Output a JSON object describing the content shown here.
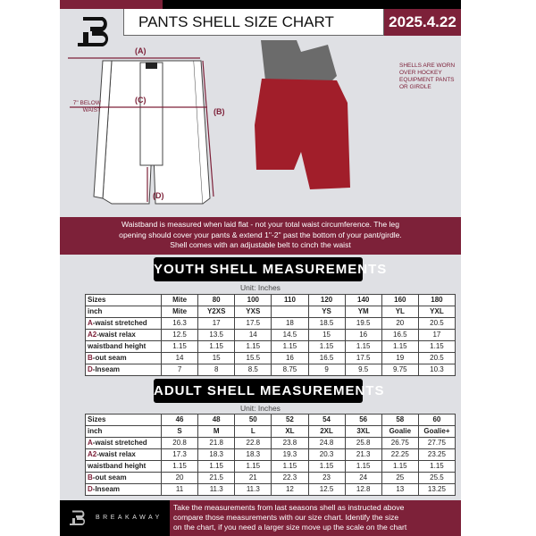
{
  "header": {
    "title": "PANTS SHELL SIZE CHART",
    "date": "2025.4.22"
  },
  "diagram": {
    "labels": {
      "a": "(A)",
      "b": "(B)",
      "c": "(C)",
      "d": "(D)"
    },
    "below_waist_note": [
      "7\" BELOW",
      "WAIST"
    ],
    "shell_note": [
      "SHELLS ARE WORN",
      "OVER HOCKEY",
      "EQUIPMENT PANTS",
      "OR GIRDLE"
    ]
  },
  "info": [
    "Waistband is measured when laid flat - not your total waist circumference. The leg",
    "opening should cover your pants & extend 1\"-2\" past the bottom of your pant/girdle.",
    "Shell comes with an adjustable belt to cinch the waist"
  ],
  "youth": {
    "title": "YOUTH SHELL MEASUREMENTS",
    "unit": "Unit: Inches",
    "rows": [
      {
        "prefix": "",
        "label": "Sizes",
        "values": [
          "Mite",
          "80",
          "100",
          "110",
          "120",
          "140",
          "160",
          "180"
        ]
      },
      {
        "prefix": "",
        "label": "inch",
        "values": [
          "Mite",
          "Y2XS",
          "YXS",
          "",
          "YS",
          "YM",
          "YL",
          "YXL"
        ]
      },
      {
        "prefix": "A",
        "label": "-waist stretched",
        "values": [
          "16.3",
          "17",
          "17.5",
          "18",
          "18.5",
          "19.5",
          "20",
          "20.5"
        ]
      },
      {
        "prefix": "A2",
        "label": "-waist relax",
        "values": [
          "12.5",
          "13.5",
          "14",
          "14.5",
          "15",
          "16",
          "16.5",
          "17"
        ]
      },
      {
        "prefix": "",
        "label": "waistband height",
        "values": [
          "1.15",
          "1.15",
          "1.15",
          "1.15",
          "1.15",
          "1.15",
          "1.15",
          "1.15"
        ]
      },
      {
        "prefix": "B",
        "label": "-out seam",
        "values": [
          "14",
          "15",
          "15.5",
          "16",
          "16.5",
          "17.5",
          "19",
          "20.5"
        ]
      },
      {
        "prefix": "D",
        "label": "-Inseam",
        "values": [
          "7",
          "8",
          "8.5",
          "8.75",
          "9",
          "9.5",
          "9.75",
          "10.3"
        ]
      }
    ]
  },
  "adult": {
    "title": "ADULT SHELL MEASUREMENTS",
    "unit": "Unit: Inches",
    "rows": [
      {
        "prefix": "",
        "label": "Sizes",
        "values": [
          "46",
          "48",
          "50",
          "52",
          "54",
          "56",
          "58",
          "60"
        ]
      },
      {
        "prefix": "",
        "label": "inch",
        "values": [
          "S",
          "M",
          "L",
          "XL",
          "2XL",
          "3XL",
          "Goalie",
          "Goalie+"
        ]
      },
      {
        "prefix": "A",
        "label": "-waist stretched",
        "values": [
          "20.8",
          "21.8",
          "22.8",
          "23.8",
          "24.8",
          "25.8",
          "26.75",
          "27.75"
        ]
      },
      {
        "prefix": "A2",
        "label": "-waist relax",
        "values": [
          "17.3",
          "18.3",
          "18.3",
          "19.3",
          "20.3",
          "21.3",
          "22.25",
          "23.25"
        ]
      },
      {
        "prefix": "",
        "label": "waistband height",
        "values": [
          "1.15",
          "1.15",
          "1.15",
          "1.15",
          "1.15",
          "1.15",
          "1.15",
          "1.15"
        ]
      },
      {
        "prefix": "B",
        "label": "-out seam",
        "values": [
          "20",
          "21.5",
          "21",
          "22.3",
          "23",
          "24",
          "25",
          "25.5"
        ]
      },
      {
        "prefix": "D",
        "label": "-Inseam",
        "values": [
          "11",
          "11.3",
          "11.3",
          "12",
          "12.5",
          "12.8",
          "13",
          "13.25"
        ]
      }
    ]
  },
  "footer": {
    "brand": "BREAKAWAY",
    "text": [
      "Take the measurements from last seasons shell as instructed above",
      "compare those measurements  with our size chart. Identify the size",
      "on the chart, if you need a larger size move up the scale on the chart"
    ]
  },
  "colors": {
    "accent": "#7d2139",
    "background": "#dfe0e4"
  }
}
